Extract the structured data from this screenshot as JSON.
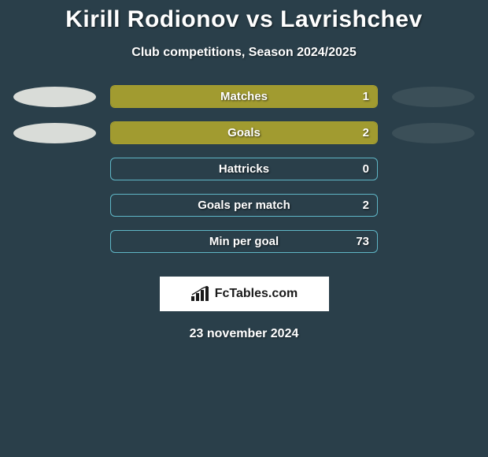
{
  "title": "Kirill Rodionov vs Lavrishchev",
  "subtitle": "Club competitions, Season 2024/2025",
  "date": "23 november 2024",
  "logo_text": "FcTables.com",
  "colors": {
    "background": "#2a3f4a",
    "left_oval": "#d9dcd8",
    "right_oval": "#3b4f58",
    "text": "#ffffff"
  },
  "stats": [
    {
      "label": "Matches",
      "value": "1",
      "fill_pct": 100,
      "fill_color": "#a9a12f",
      "border_color": "#a9a12f",
      "show_ovals": true
    },
    {
      "label": "Goals",
      "value": "2",
      "fill_pct": 100,
      "fill_color": "#a9a12f",
      "border_color": "#a9a12f",
      "show_ovals": true
    },
    {
      "label": "Hattricks",
      "value": "0",
      "fill_pct": 0,
      "fill_color": "#a9a12f",
      "border_color": "#5fb6c6",
      "show_ovals": false
    },
    {
      "label": "Goals per match",
      "value": "2",
      "fill_pct": 0,
      "fill_color": "#a9a12f",
      "border_color": "#5fb6c6",
      "show_ovals": false
    },
    {
      "label": "Min per goal",
      "value": "73",
      "fill_pct": 0,
      "fill_color": "#a9a12f",
      "border_color": "#5fb6c6",
      "show_ovals": false
    }
  ]
}
